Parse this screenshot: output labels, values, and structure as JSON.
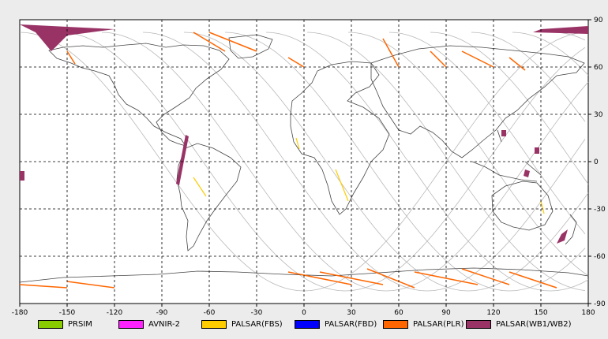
{
  "chart_data": {
    "type": "map",
    "xlim": [
      -180,
      180
    ],
    "ylim": [
      -90,
      90
    ],
    "x_ticks": [
      -180,
      -150,
      -120,
      -90,
      -60,
      -30,
      0,
      30,
      60,
      90,
      120,
      150,
      180
    ],
    "y_ticks": [
      90,
      60,
      30,
      0,
      -30,
      -60,
      -90
    ],
    "grid": true,
    "legend": [
      {
        "label": "PRSIM",
        "color": "#88cc00"
      },
      {
        "label": "AVNIR-2",
        "color": "#ff22ff"
      },
      {
        "label": "PALSAR(FBS)",
        "color": "#ffcc00"
      },
      {
        "label": "PALSAR(FBD)",
        "color": "#0000ff"
      },
      {
        "label": "PALSAR(PLR)",
        "color": "#ff6600"
      },
      {
        "label": "PALSAR(WB1/WB2)",
        "color": "#993366"
      }
    ],
    "coastline_color": "#444444",
    "orbit_color": "#b8b8b8"
  }
}
